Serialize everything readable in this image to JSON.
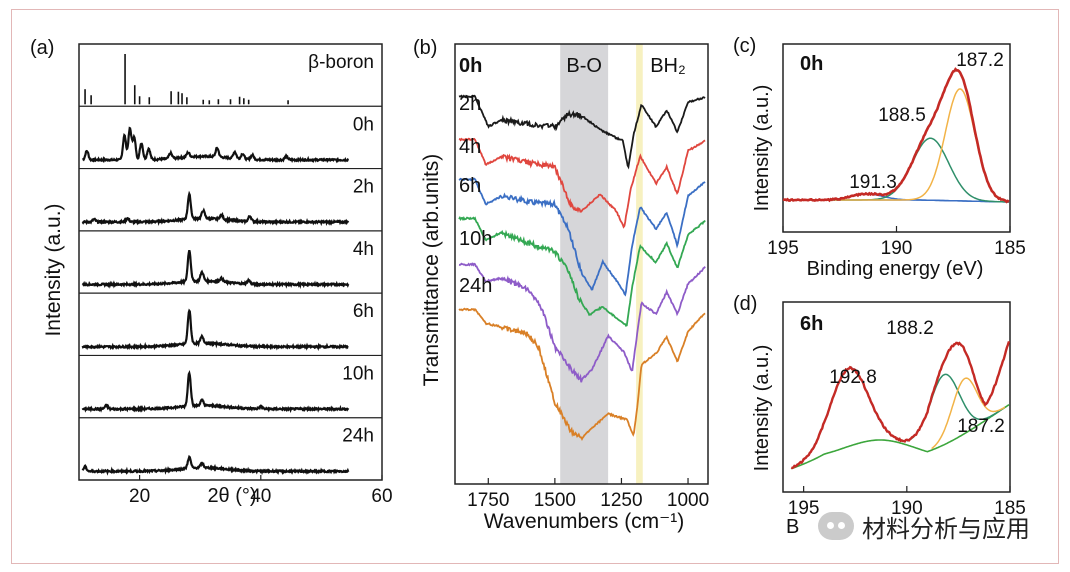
{
  "watermark": "材料分析与应用",
  "colors": {
    "red": "#e0473f",
    "blue": "#3b6fc4",
    "green": "#34a853",
    "purple": "#8e5cc8",
    "orange": "#d98027",
    "darkred": "#c42a25",
    "yellow": "#f2b347",
    "teal": "#2f8f6a",
    "black": "#1a1a1a",
    "grey_band": "#c8c8cc",
    "yellow_band": "#f6efb9"
  },
  "chart_data": [
    {
      "panel": "(a)",
      "type": "line",
      "xlabel": "2θ (°)",
      "ylabel": "Intensity (a.u.)",
      "xlim": [
        10,
        60
      ],
      "xticks": [
        20,
        40,
        60
      ],
      "series": [
        {
          "name": "β-boron",
          "kind": "sticks",
          "x": [
            11.0,
            12.0,
            17.6,
            19.2,
            20.0,
            21.6,
            25.2,
            26.4,
            27.0,
            27.8,
            30.5,
            31.5,
            33.0,
            35.0,
            36.5,
            37.2,
            38.0,
            44.5
          ],
          "y": [
            0.3,
            0.18,
            1.0,
            0.38,
            0.16,
            0.14,
            0.26,
            0.25,
            0.22,
            0.14,
            0.09,
            0.08,
            0.1,
            0.1,
            0.15,
            0.12,
            0.09,
            0.08
          ]
        },
        {
          "name": "0h",
          "peaks": [
            [
              11.3,
              0.2
            ],
            [
              17.5,
              0.55
            ],
            [
              18.4,
              0.7
            ],
            [
              19.1,
              0.5
            ],
            [
              20.3,
              0.38
            ],
            [
              21.5,
              0.25
            ],
            [
              25.1,
              0.12
            ],
            [
              28.0,
              0.1
            ],
            [
              32.8,
              0.2
            ],
            [
              35.7,
              0.15
            ],
            [
              37.0,
              0.12
            ],
            [
              38.6,
              0.1
            ],
            [
              44.2,
              0.08
            ]
          ],
          "baseline": 0.08
        },
        {
          "name": "2h",
          "peaks": [
            [
              12.5,
              0.06
            ],
            [
              18.0,
              0.08
            ],
            [
              28.2,
              0.55
            ],
            [
              30.5,
              0.18
            ],
            [
              33.5,
              0.1
            ],
            [
              38.2,
              0.12
            ]
          ],
          "baseline": 0.1
        },
        {
          "name": "4h",
          "peaks": [
            [
              28.2,
              0.7
            ],
            [
              30.3,
              0.2
            ],
            [
              33.5,
              0.08
            ],
            [
              38.0,
              0.08
            ]
          ],
          "baseline": 0.08
        },
        {
          "name": "6h",
          "peaks": [
            [
              28.2,
              0.75
            ],
            [
              30.3,
              0.15
            ]
          ],
          "baseline": 0.08
        },
        {
          "name": "10h",
          "peaks": [
            [
              14.5,
              0.08
            ],
            [
              28.2,
              0.75
            ],
            [
              30.3,
              0.12
            ],
            [
              40.0,
              0.05
            ]
          ],
          "baseline": 0.08
        },
        {
          "name": "24h",
          "peaks": [
            [
              11.0,
              0.1
            ],
            [
              28.2,
              0.25
            ],
            [
              30.3,
              0.1
            ]
          ],
          "baseline": 0.08
        }
      ]
    },
    {
      "panel": "(b)",
      "type": "line",
      "xlabel": "Wavenumbers (cm⁻¹)",
      "ylabel": "Transmittance (arb.units)",
      "xlim": [
        1875,
        925
      ],
      "xticks": [
        1750,
        1500,
        1250,
        1000
      ],
      "bands": [
        {
          "label": "B-O",
          "range": [
            1480,
            1300
          ]
        },
        {
          "label": "BH₂",
          "range": [
            1195,
            1170
          ]
        }
      ],
      "series": [
        {
          "name": "0h",
          "color": "black",
          "points": [
            [
              1875,
              0.3
            ],
            [
              1800,
              0.3
            ],
            [
              1750,
              0.85
            ],
            [
              1700,
              0.72
            ],
            [
              1600,
              0.8
            ],
            [
              1500,
              0.85
            ],
            [
              1450,
              0.62
            ],
            [
              1400,
              0.65
            ],
            [
              1330,
              0.9
            ],
            [
              1270,
              1.05
            ],
            [
              1245,
              1.1
            ],
            [
              1225,
              1.6
            ],
            [
              1205,
              1.0
            ],
            [
              1175,
              0.45
            ],
            [
              1120,
              0.85
            ],
            [
              1080,
              0.55
            ],
            [
              1040,
              0.95
            ],
            [
              1000,
              0.4
            ],
            [
              925,
              0.3
            ]
          ]
        },
        {
          "name": "2h",
          "color": "red",
          "points": [
            [
              1875,
              0.3
            ],
            [
              1800,
              0.3
            ],
            [
              1760,
              0.75
            ],
            [
              1700,
              0.62
            ],
            [
              1600,
              0.72
            ],
            [
              1500,
              0.8
            ],
            [
              1440,
              1.5
            ],
            [
              1400,
              1.6
            ],
            [
              1330,
              1.3
            ],
            [
              1270,
              1.6
            ],
            [
              1240,
              1.9
            ],
            [
              1215,
              1.2
            ],
            [
              1180,
              0.6
            ],
            [
              1120,
              1.1
            ],
            [
              1080,
              0.8
            ],
            [
              1040,
              1.3
            ],
            [
              1000,
              0.5
            ],
            [
              925,
              0.3
            ]
          ]
        },
        {
          "name": "4h",
          "color": "blue",
          "points": [
            [
              1875,
              0.3
            ],
            [
              1800,
              0.3
            ],
            [
              1760,
              0.75
            ],
            [
              1700,
              0.6
            ],
            [
              1600,
              0.7
            ],
            [
              1500,
              0.75
            ],
            [
              1450,
              1.2
            ],
            [
              1400,
              2.0
            ],
            [
              1360,
              2.3
            ],
            [
              1320,
              1.8
            ],
            [
              1260,
              2.2
            ],
            [
              1235,
              2.4
            ],
            [
              1210,
              1.5
            ],
            [
              1180,
              0.8
            ],
            [
              1120,
              1.2
            ],
            [
              1080,
              0.9
            ],
            [
              1040,
              1.5
            ],
            [
              1000,
              0.6
            ],
            [
              925,
              0.3
            ]
          ]
        },
        {
          "name": "6h",
          "color": "green",
          "points": [
            [
              1875,
              0.3
            ],
            [
              1800,
              0.3
            ],
            [
              1760,
              0.7
            ],
            [
              1700,
              0.55
            ],
            [
              1600,
              0.75
            ],
            [
              1500,
              0.9
            ],
            [
              1450,
              1.25
            ],
            [
              1410,
              1.75
            ],
            [
              1370,
              2.05
            ],
            [
              1320,
              1.9
            ],
            [
              1260,
              2.15
            ],
            [
              1230,
              2.25
            ],
            [
              1210,
              1.55
            ],
            [
              1180,
              0.8
            ],
            [
              1120,
              1.1
            ],
            [
              1080,
              0.75
            ],
            [
              1040,
              1.2
            ],
            [
              1000,
              0.6
            ],
            [
              925,
              0.3
            ]
          ]
        },
        {
          "name": "10h",
          "color": "purple",
          "points": [
            [
              1875,
              0.3
            ],
            [
              1800,
              0.3
            ],
            [
              1760,
              0.6
            ],
            [
              1700,
              0.55
            ],
            [
              1600,
              0.75
            ],
            [
              1550,
              1.1
            ],
            [
              1500,
              1.8
            ],
            [
              1440,
              2.2
            ],
            [
              1400,
              2.4
            ],
            [
              1360,
              2.2
            ],
            [
              1300,
              1.6
            ],
            [
              1240,
              1.9
            ],
            [
              1210,
              2.25
            ],
            [
              1195,
              1.7
            ],
            [
              1175,
              1.0
            ],
            [
              1120,
              1.2
            ],
            [
              1080,
              0.8
            ],
            [
              1040,
              1.2
            ],
            [
              1000,
              0.65
            ],
            [
              925,
              0.3
            ]
          ]
        },
        {
          "name": "24h",
          "color": "orange",
          "points": [
            [
              1875,
              0.3
            ],
            [
              1800,
              0.3
            ],
            [
              1760,
              0.55
            ],
            [
              1700,
              0.62
            ],
            [
              1600,
              0.75
            ],
            [
              1560,
              1.0
            ],
            [
              1500,
              2.0
            ],
            [
              1440,
              2.5
            ],
            [
              1400,
              2.65
            ],
            [
              1360,
              2.45
            ],
            [
              1300,
              2.2
            ],
            [
              1230,
              2.3
            ],
            [
              1205,
              2.6
            ],
            [
              1190,
              2.05
            ],
            [
              1175,
              1.3
            ],
            [
              1120,
              1.1
            ],
            [
              1080,
              0.8
            ],
            [
              1040,
              1.25
            ],
            [
              1000,
              0.7
            ],
            [
              925,
              0.3
            ]
          ]
        }
      ],
      "labels": [
        "0h",
        "2h",
        "4h",
        "6h",
        "10h",
        "24h"
      ]
    },
    {
      "panel": "(c)",
      "type": "line",
      "title": "0h",
      "xlabel": "Binding energy (eV)",
      "ylabel": "Intensity (a.u.)",
      "xlim": [
        195,
        185
      ],
      "xticks": [
        195,
        190,
        185
      ],
      "peaks": [
        {
          "label": "191.3",
          "center": 191.3,
          "color": "blue"
        },
        {
          "label": "188.5",
          "center": 188.5,
          "color": "teal"
        },
        {
          "label": "187.2",
          "center": 187.2,
          "color": "yellow"
        }
      ]
    },
    {
      "panel": "(d)",
      "type": "line",
      "title": "6h",
      "ylabel": "Intensity (a.u.)",
      "xlim": [
        196,
        185
      ],
      "xticks": [
        195,
        190,
        185
      ],
      "peaks": [
        {
          "label": "192.8",
          "center": 192.8,
          "color": "blue"
        },
        {
          "label": "188.2",
          "center": 188.2,
          "color": "teal"
        },
        {
          "label": "187.2",
          "center": 187.2,
          "color": "yellow"
        }
      ]
    }
  ],
  "labels_text": {
    "panel_a": "(a)",
    "panel_b": "(b)",
    "panel_c": "(c)",
    "panel_d": "(d)",
    "bo": "B-O",
    "bh2": "BH₂",
    "c_xlabel": "Binding energy (eV)",
    "d_xlabel_partial": "B"
  }
}
